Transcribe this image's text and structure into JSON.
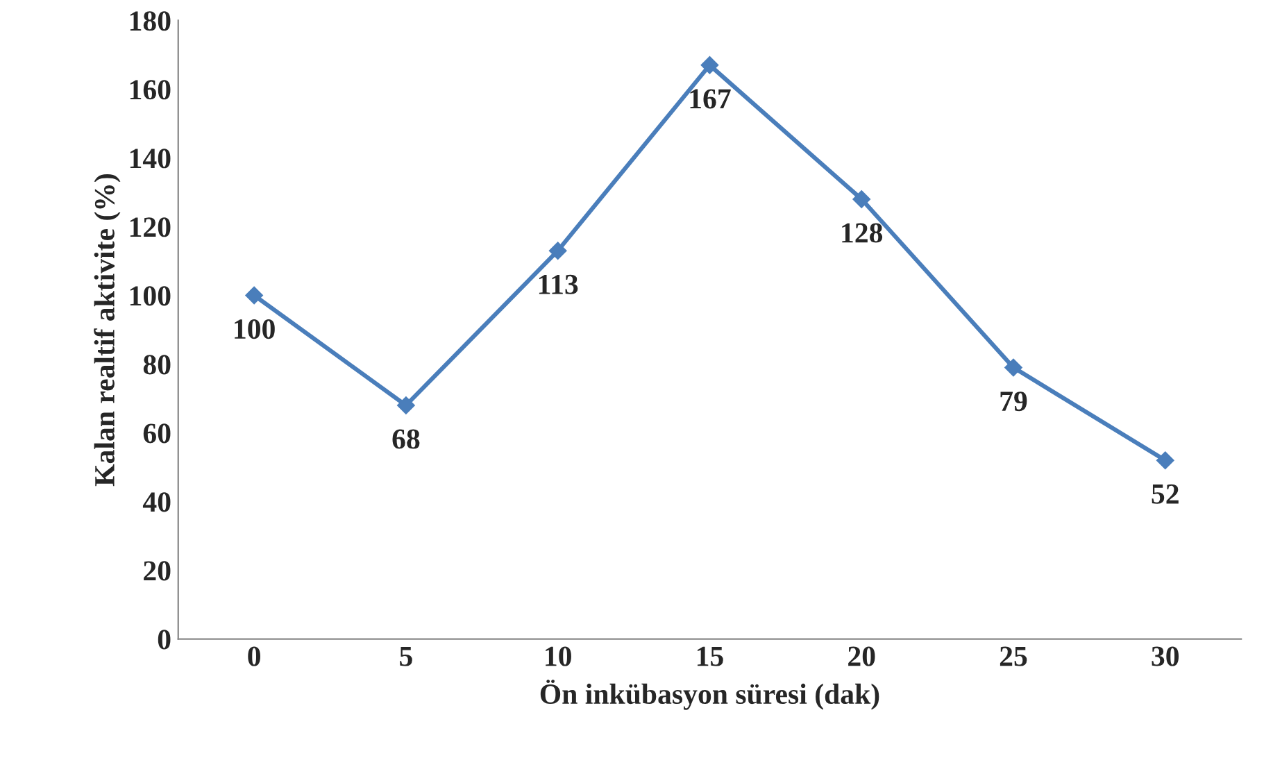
{
  "chart_data": {
    "type": "line",
    "xlabel": "Ön inkübasyon süresi (dak)",
    "ylabel": "Kalan realtif aktivite (%)",
    "categories": [
      "0",
      "5",
      "10",
      "15",
      "20",
      "25",
      "30"
    ],
    "series": [
      {
        "color": "#4a7ebb",
        "values": [
          100,
          68,
          113,
          167,
          128,
          79,
          52
        ]
      }
    ],
    "ylim": [
      0,
      180
    ],
    "yticks": [
      0,
      20,
      40,
      60,
      80,
      100,
      120,
      140,
      160,
      180
    ],
    "data_labels": true,
    "marker": "diamond",
    "line_style": "solid",
    "grid": false,
    "legend": false
  }
}
